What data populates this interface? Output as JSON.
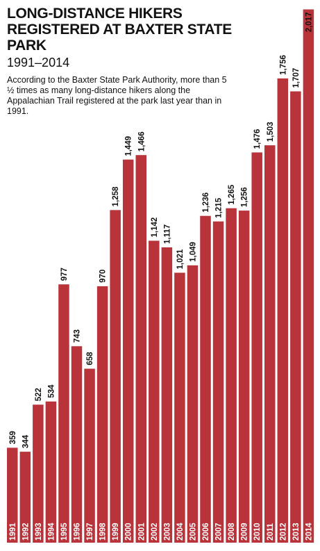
{
  "header": {
    "title": "Long-distance hikers registered at Baxter State Park",
    "subtitle": "1991–2014",
    "note": "According to the Baxter State Park Authority, more than 5 ½ times as many long-distance hikers along the Appalachian Trail registered at the park last year than in 1991."
  },
  "colors": {
    "bar": "#b8333a",
    "bar_label": "#ffffff",
    "value_label": "#111111"
  },
  "chart_data": {
    "type": "bar",
    "orientation": "vertical",
    "title": "Long-distance hikers registered at Baxter State Park",
    "subtitle": "1991–2014",
    "xlabel": "",
    "ylabel": "",
    "ylim": [
      0,
      2100
    ],
    "grid": false,
    "categories": [
      "1991",
      "1992",
      "1993",
      "1994",
      "1995",
      "1996",
      "1997",
      "1998",
      "1999",
      "2000",
      "2001",
      "2002",
      "2003",
      "2004",
      "2005",
      "2006",
      "2007",
      "2008",
      "2009",
      "2010",
      "2011",
      "2012",
      "2013",
      "2014"
    ],
    "values": [
      359,
      344,
      522,
      534,
      977,
      743,
      658,
      970,
      1258,
      1449,
      1466,
      1142,
      1117,
      1021,
      1049,
      1236,
      1215,
      1265,
      1256,
      1476,
      1503,
      1756,
      1707,
      2017
    ],
    "labels": [
      "359",
      "344",
      "522",
      "534",
      "977",
      "743",
      "658",
      "970",
      "1,258",
      "1,449",
      "1,466",
      "1,142",
      "1,117",
      "1,021",
      "1,049",
      "1,236",
      "1,215",
      "1,265",
      "1,256",
      "1,476",
      "1,503",
      "1,756",
      "1,707",
      "2,017"
    ]
  }
}
